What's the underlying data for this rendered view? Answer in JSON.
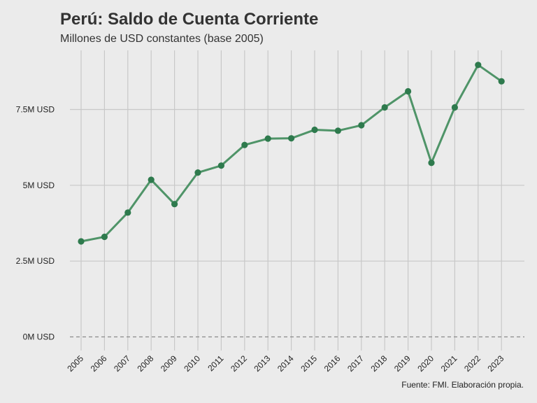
{
  "chart_data": {
    "type": "line",
    "title": "Perú: Saldo de Cuenta Corriente",
    "subtitle": "Millones de USD constantes (base 2005)",
    "caption": "Fuente: FMI. Elaboración propia.",
    "xlabel": "",
    "ylabel": "",
    "x": [
      "2005",
      "2006",
      "2007",
      "2008",
      "2009",
      "2010",
      "2011",
      "2012",
      "2013",
      "2014",
      "2015",
      "2016",
      "2017",
      "2018",
      "2019",
      "2020",
      "2021",
      "2022",
      "2023"
    ],
    "series": [
      {
        "values": [
          3.15,
          3.3,
          4.1,
          5.18,
          4.38,
          5.42,
          5.65,
          6.33,
          6.54,
          6.55,
          6.83,
          6.8,
          6.98,
          7.57,
          8.1,
          5.74,
          7.57,
          8.97,
          8.43
        ]
      }
    ],
    "yticks": [
      0,
      2.5,
      5,
      7.5
    ],
    "ytick_labels": [
      "0M USD",
      "2.5M USD",
      "5M USD",
      "7.5M USD"
    ],
    "ylim": [
      -0.45,
      9.45
    ],
    "reference_line": {
      "y": 0,
      "style": "dashed"
    },
    "grid": true,
    "colors": {
      "background": "#ebebeb",
      "grid": "#c8c8c8",
      "line": "#4f9468",
      "point": "#2e7a4d",
      "reference": "#8a8a8a"
    }
  }
}
